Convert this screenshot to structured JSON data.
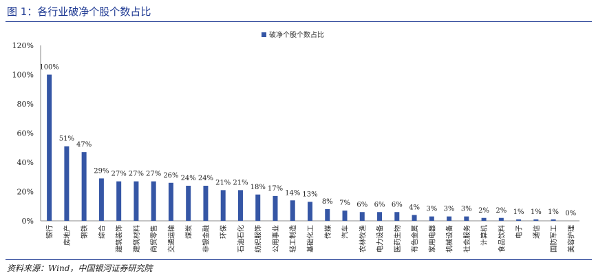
{
  "figure_title": "图 1：各行业破净个股个数占比",
  "source": "资料来源：Wind，中国银河证券研究院",
  "colors": {
    "bar": "#3556a5",
    "title": "#1f3a93",
    "axis": "#888888"
  },
  "chart_data": {
    "type": "bar",
    "title": "",
    "xlabel": "",
    "ylabel": "",
    "ylim": [
      0,
      120
    ],
    "yticks": [
      "0%",
      "20%",
      "40%",
      "60%",
      "80%",
      "100%",
      "120%"
    ],
    "grid": false,
    "legend_position": "top-center",
    "series": [
      {
        "name": "破净个股个数占比",
        "values": [
          100,
          51,
          47,
          29,
          27,
          27,
          27,
          26,
          24,
          24,
          21,
          21,
          18,
          17,
          14,
          13,
          8,
          7,
          6,
          6,
          6,
          4,
          3,
          3,
          3,
          2,
          2,
          1,
          1,
          1,
          0
        ],
        "labels": [
          "100%",
          "51%",
          "47%",
          "29%",
          "27%",
          "27%",
          "27%",
          "26%",
          "24%",
          "24%",
          "21%",
          "21%",
          "18%",
          "17%",
          "14%",
          "13%",
          "8%",
          "7%",
          "6%",
          "6%",
          "6%",
          "4%",
          "3%",
          "3%",
          "3%",
          "2%",
          "2%",
          "1%",
          "1%",
          "1%",
          "0%"
        ]
      }
    ],
    "categories": [
      "银行",
      "房地产",
      "钢铁",
      "综合",
      "建筑装饰",
      "建筑材料",
      "商贸零售",
      "交通运输",
      "煤炭",
      "非银金融",
      "环保",
      "石油石化",
      "纺织服饰",
      "公用事业",
      "轻工制造",
      "基础化工",
      "传媒",
      "汽车",
      "农林牧渔",
      "电力设备",
      "医药生物",
      "有色金属",
      "家用电器",
      "机械设备",
      "社会服务",
      "计算机",
      "食品饮料",
      "电子",
      "通信",
      "国防军工",
      "美容护理"
    ]
  }
}
